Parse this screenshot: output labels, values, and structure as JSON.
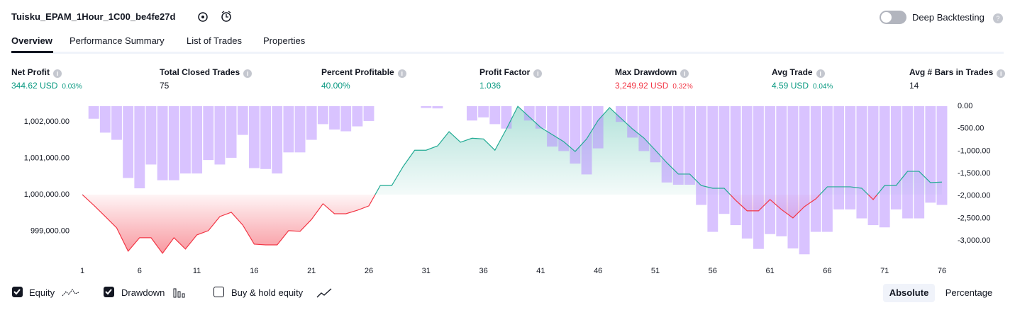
{
  "header": {
    "title": "Tuisku_EPAM_1Hour_1C00_be4fe27d",
    "deep_backtesting": "Deep Backtesting"
  },
  "tabs": [
    "Overview",
    "Performance Summary",
    "List of Trades",
    "Properties"
  ],
  "metrics": [
    {
      "label": "Net Profit",
      "value": "344.62 USD",
      "pct": "0.03%",
      "tone": "pos"
    },
    {
      "label": "Total Closed Trades",
      "value": "75"
    },
    {
      "label": "Percent Profitable",
      "value": "40.00%",
      "tone": "pos"
    },
    {
      "label": "Profit Factor",
      "value": "1.036",
      "tone": "pos"
    },
    {
      "label": "Max Drawdown",
      "value": "3,249.92 USD",
      "pct": "0.32%",
      "tone": "neg"
    },
    {
      "label": "Avg Trade",
      "value": "4.59 USD",
      "pct": "0.04%",
      "tone": "pos"
    },
    {
      "label": "Avg # Bars in Trades",
      "value": "14"
    }
  ],
  "chart_data": {
    "type": "line",
    "x": [
      1,
      2,
      3,
      4,
      5,
      6,
      7,
      8,
      9,
      10,
      11,
      12,
      13,
      14,
      15,
      16,
      17,
      18,
      19,
      20,
      21,
      22,
      23,
      24,
      25,
      26,
      27,
      28,
      29,
      30,
      31,
      32,
      33,
      34,
      35,
      36,
      37,
      38,
      39,
      40,
      41,
      42,
      43,
      44,
      45,
      46,
      47,
      48,
      49,
      50,
      51,
      52,
      53,
      54,
      55,
      56,
      57,
      58,
      59,
      60,
      61,
      62,
      63,
      64,
      65,
      66,
      67,
      68,
      69,
      70,
      71,
      72,
      73,
      74,
      75,
      76
    ],
    "xlim": [
      1,
      76
    ],
    "xticks": [
      1,
      6,
      11,
      16,
      21,
      26,
      31,
      36,
      41,
      46,
      51,
      56,
      61,
      66,
      71,
      76
    ],
    "ylim": [
      998250,
      1002430
    ],
    "yticks": [
      {
        "value": 999000,
        "label": "999,000.00"
      },
      {
        "value": 1000000,
        "label": "1,000,000.00"
      },
      {
        "value": 1001000,
        "label": "1,001,000.00"
      },
      {
        "value": 1002000,
        "label": "1,002,000.00"
      }
    ],
    "y2lim": [
      -3390,
      0
    ],
    "y2ticks": [
      {
        "value": 0,
        "label": "0.00"
      },
      {
        "value": -500,
        "label": "-500.00"
      },
      {
        "value": -1000,
        "label": "-1,000.00"
      },
      {
        "value": -1500,
        "label": "-1,500.00"
      },
      {
        "value": -2000,
        "label": "-2,000.00"
      },
      {
        "value": -2500,
        "label": "-2,500.00"
      },
      {
        "value": -3000,
        "label": "-3,000.00"
      }
    ],
    "series": [
      {
        "name": "Equity",
        "type": "line",
        "color_up": "#22ab94",
        "color_down": "#f23645",
        "axis": "y",
        "values": [
          1000000,
          999709,
          999400,
          999087,
          998447,
          998816,
          998816,
          998388,
          998816,
          998505,
          998893,
          999010,
          999398,
          999515,
          999165,
          998640,
          998620,
          998620,
          999010,
          998990,
          999320,
          999750,
          999475,
          999475,
          999570,
          999690,
          1000250,
          1000250,
          1000775,
          1001220,
          1001220,
          1001340,
          1001730,
          1001440,
          1001550,
          1001530,
          1001220,
          1001800,
          1002425,
          1002135,
          1001845,
          1001650,
          1001455,
          1001185,
          1001530,
          1002040,
          1002390,
          1002095,
          1001805,
          1001555,
          1001220,
          1000875,
          1000565,
          1000565,
          1000250,
          1000175,
          1000175,
          999845,
          999555,
          999555,
          999865,
          999590,
          999360,
          999670,
          999885,
          1000215,
          1000215,
          1000215,
          1000175,
          999865,
          1000250,
          1000250,
          1000640,
          1000640,
          1000330,
          1000345
        ]
      },
      {
        "name": "Drawdown",
        "type": "bar",
        "color": "#b388ff",
        "axis": "y2",
        "values": [
          0,
          -280,
          -590,
          -750,
          -1600,
          -1830,
          -1300,
          -1650,
          -1650,
          -1500,
          -1500,
          -1200,
          -1300,
          -1150,
          -640,
          -1380,
          -1400,
          -1500,
          -1030,
          -1030,
          -750,
          -400,
          -520,
          -560,
          -450,
          -330,
          0,
          0,
          0,
          0,
          -40,
          -50,
          0,
          0,
          -320,
          -250,
          -400,
          -500,
          0,
          -320,
          -500,
          -900,
          -1000,
          -1280,
          -1520,
          -940,
          0,
          -350,
          -700,
          -1000,
          -1250,
          -1700,
          -1750,
          -1750,
          -2200,
          -2800,
          -2400,
          -2650,
          -2950,
          -3180,
          -2850,
          -2900,
          -3170,
          -3300,
          -2800,
          -2800,
          -2300,
          -2300,
          -2500,
          -2650,
          -2700,
          -2300,
          -2500,
          -2500,
          -2150,
          -2200
        ]
      }
    ]
  },
  "checkboxes": [
    {
      "checked": true
    },
    {
      "checked": true
    },
    {
      "label": "Buy & hold equity",
      "checked": false
    }
  ],
  "modes": [
    "Absolute",
    "Percentage"
  ]
}
